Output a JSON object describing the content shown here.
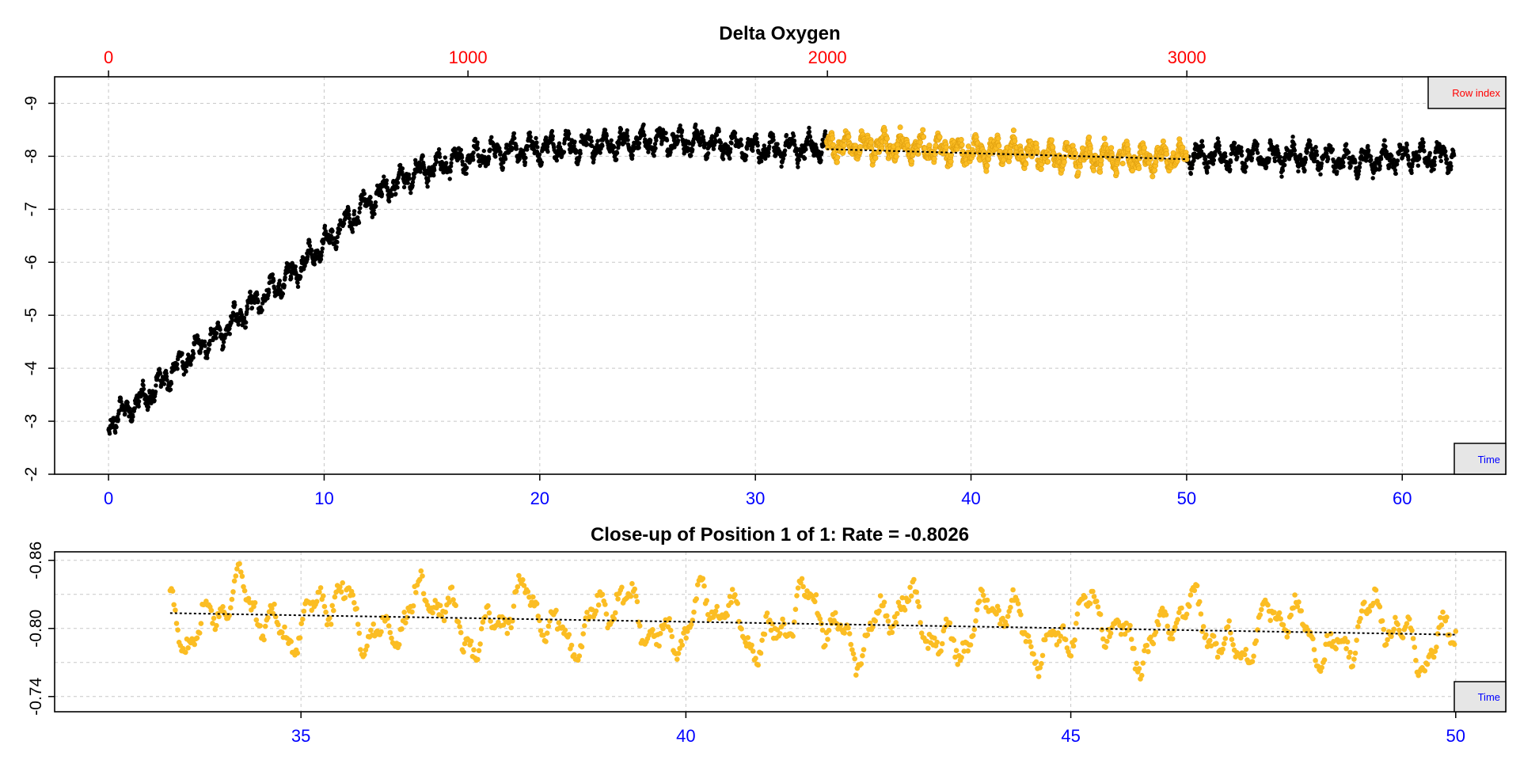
{
  "colors": {
    "background": "#ffffff",
    "frame": "#000000",
    "grid": "#c8c8c8",
    "main_points": "#000000",
    "highlight_points": "#fbbd23",
    "highlight_outline": "#e0a010",
    "trend_line": "#000000",
    "row_index_axis": "#ff0000",
    "time_axis": "#0000ff",
    "tag_fill": "#e6e6e6"
  },
  "chart_data": [
    {
      "type": "scatter",
      "title": "Delta Oxygen",
      "xlabel": "",
      "ylabel": "",
      "y_reversed": true,
      "grid": true,
      "ylim": [
        -2,
        -9.5
      ],
      "y_ticks": [
        "-2",
        "-3",
        "-4",
        "-5",
        "-6",
        "-7",
        "-8",
        "-9"
      ],
      "xlim": [
        -2.5,
        64.8
      ],
      "x_ticks": [
        "0",
        "10",
        "20",
        "30",
        "40",
        "50",
        "60"
      ],
      "x_top_axis": {
        "label": "Row index",
        "ticks": [
          "0",
          "1000",
          "2000",
          "3000"
        ],
        "tick_values": [
          0,
          1000,
          2000,
          3000
        ],
        "index_to_time": 0.01667
      },
      "x_bottom_axis_label": "Time",
      "series": [
        {
          "role": "all",
          "x_range": [
            0,
            62.4
          ],
          "x": [
            0,
            1,
            2,
            3,
            4,
            5,
            6,
            7,
            8,
            9,
            10,
            11,
            12,
            13,
            14,
            15,
            16,
            17,
            18,
            19,
            20,
            22,
            24,
            26,
            28,
            30,
            32,
            34,
            36,
            38,
            40,
            42,
            44,
            46,
            48,
            50,
            52,
            54,
            56,
            58,
            60,
            62
          ],
          "y": [
            -3.0,
            -3.25,
            -3.55,
            -3.95,
            -4.35,
            -4.6,
            -4.95,
            -5.3,
            -5.6,
            -5.95,
            -6.35,
            -6.75,
            -7.1,
            -7.4,
            -7.65,
            -7.8,
            -7.92,
            -8.0,
            -8.08,
            -8.12,
            -8.15,
            -8.2,
            -8.25,
            -8.3,
            -8.25,
            -8.15,
            -8.15,
            -8.2,
            -8.2,
            -8.15,
            -8.1,
            -8.1,
            -8.0,
            -8.0,
            -7.95,
            -8.0,
            -8.0,
            -8.0,
            -8.0,
            -7.9,
            -8.0,
            -8.0
          ],
          "point_count": 3750,
          "scatter_amplitude": 0.35
        },
        {
          "role": "highlighted window",
          "x_range": [
            33.3,
            50.0
          ],
          "trend_start": [
            33.3,
            -8.135
          ],
          "trend_end": [
            50.0,
            -7.945
          ]
        }
      ],
      "tags": [
        "Row index",
        "Time"
      ]
    },
    {
      "type": "scatter",
      "title": "Close-up of Position 1 of 1: Rate =  -0.8026",
      "xlabel": "",
      "ylabel": "",
      "y_reversed": true,
      "grid": true,
      "ylim": [
        -0.7266,
        -0.8675
      ],
      "y_ticks": [
        "-0.86",
        "-0.80",
        "-0.74"
      ],
      "y_tick_values": [
        -0.86,
        -0.8,
        -0.74
      ],
      "y_grid_values": [
        -0.86,
        -0.83,
        -0.8,
        -0.77,
        -0.74
      ],
      "xlim": [
        31.8,
        50.65
      ],
      "x_ticks": [
        "35",
        "40",
        "45",
        "50"
      ],
      "x_tick_values": [
        35,
        40,
        45,
        50
      ],
      "series": [
        {
          "role": "close-up",
          "x_range": [
            33.3,
            50.0
          ],
          "y_mean_range": [
            -0.8135,
            -0.7945
          ],
          "scatter_amplitude": 0.042,
          "trend_start": [
            33.3,
            -0.8135
          ],
          "trend_end": [
            50.0,
            -0.7945
          ],
          "rate": -0.8026
        }
      ],
      "tags": [
        "Time"
      ]
    }
  ]
}
